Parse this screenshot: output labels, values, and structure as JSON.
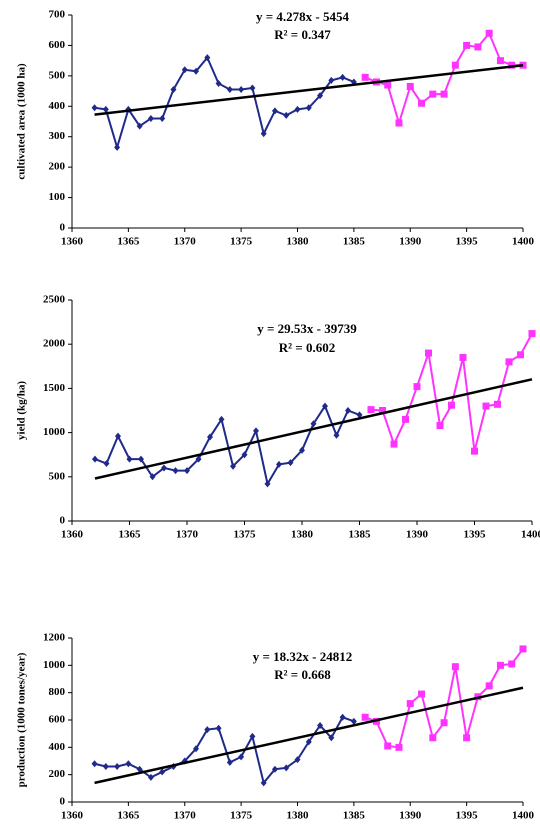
{
  "chart_data": [
    {
      "type": "line",
      "y_label": "cultivated area (1000 ha)",
      "annotations": [
        "y = 4.278x - 5454",
        "R² = 0.347"
      ],
      "x": [
        1362,
        1363,
        1364,
        1365,
        1366,
        1367,
        1368,
        1369,
        1370,
        1371,
        1372,
        1373,
        1374,
        1375,
        1376,
        1377,
        1378,
        1379,
        1380,
        1381,
        1382,
        1383,
        1384,
        1385,
        1386,
        1387,
        1388,
        1389,
        1390,
        1391,
        1392,
        1393,
        1394,
        1395,
        1396,
        1397,
        1398,
        1399,
        1400
      ],
      "xlim": [
        1360,
        1400
      ],
      "xticks": [
        1360,
        1365,
        1370,
        1375,
        1380,
        1385,
        1390,
        1395,
        1400
      ],
      "ylim": [
        0,
        700
      ],
      "yticks": [
        0,
        100,
        200,
        300,
        400,
        500,
        600,
        700
      ],
      "series": [
        {
          "color": "#1f2a8a",
          "marker": "diamond",
          "values": [
            395,
            390,
            265,
            390,
            335,
            360,
            360,
            455,
            520,
            515,
            560,
            475,
            455,
            455,
            460,
            310,
            385,
            370,
            390,
            395,
            435,
            485,
            495,
            480,
            null,
            null,
            null,
            null,
            null,
            null,
            null,
            null,
            null,
            null,
            null,
            null,
            null,
            null,
            null
          ]
        },
        {
          "color": "#ff33ff",
          "marker": "square",
          "values": [
            null,
            null,
            null,
            null,
            null,
            null,
            null,
            null,
            null,
            null,
            null,
            null,
            null,
            null,
            null,
            null,
            null,
            null,
            null,
            null,
            null,
            null,
            null,
            null,
            495,
            480,
            470,
            345,
            465,
            410,
            440,
            440,
            535,
            600,
            595,
            640,
            550,
            535,
            535
          ]
        }
      ],
      "trendline": {
        "color": "#000000",
        "x": [
          1362,
          1400
        ],
        "values": [
          372.6,
          535
        ]
      }
    },
    {
      "type": "line",
      "y_label": "yield (kg/ha)",
      "annotations": [
        "y = 29.53x - 39739",
        "R² = 0.602"
      ],
      "x": [
        1362,
        1363,
        1364,
        1365,
        1366,
        1367,
        1368,
        1369,
        1370,
        1371,
        1372,
        1373,
        1374,
        1375,
        1376,
        1377,
        1378,
        1379,
        1380,
        1381,
        1382,
        1383,
        1384,
        1385,
        1386,
        1387,
        1388,
        1389,
        1390,
        1391,
        1392,
        1393,
        1394,
        1395,
        1396,
        1397,
        1398,
        1399,
        1400
      ],
      "xlim": [
        1360,
        1400
      ],
      "xticks": [
        1360,
        1365,
        1370,
        1375,
        1380,
        1385,
        1390,
        1395,
        1400
      ],
      "ylim": [
        0,
        2500
      ],
      "yticks": [
        0,
        500,
        1000,
        1500,
        2000,
        2500
      ],
      "series": [
        {
          "color": "#1f2a8a",
          "marker": "diamond",
          "values": [
            700,
            650,
            960,
            700,
            700,
            500,
            600,
            570,
            570,
            700,
            950,
            1150,
            620,
            750,
            1020,
            420,
            640,
            660,
            800,
            1100,
            1300,
            970,
            1250,
            1200,
            null,
            null,
            null,
            null,
            null,
            null,
            null,
            null,
            null,
            null,
            null,
            null,
            null,
            null,
            null
          ]
        },
        {
          "color": "#ff33ff",
          "marker": "square",
          "values": [
            null,
            null,
            null,
            null,
            null,
            null,
            null,
            null,
            null,
            null,
            null,
            null,
            null,
            null,
            null,
            null,
            null,
            null,
            null,
            null,
            null,
            null,
            null,
            null,
            1260,
            1250,
            870,
            1150,
            1520,
            1900,
            1080,
            1310,
            1850,
            790,
            1300,
            1320,
            1800,
            1880,
            2120
          ]
        }
      ],
      "trendline": {
        "color": "#000000",
        "x": [
          1362,
          1400
        ],
        "values": [
          480.9,
          1603
        ]
      }
    },
    {
      "type": "line",
      "y_label": "production (1000 tones/year)",
      "annotations": [
        "y = 18.32x - 24812",
        "R² = 0.668"
      ],
      "x": [
        1362,
        1363,
        1364,
        1365,
        1366,
        1367,
        1368,
        1369,
        1370,
        1371,
        1372,
        1373,
        1374,
        1375,
        1376,
        1377,
        1378,
        1379,
        1380,
        1381,
        1382,
        1383,
        1384,
        1385,
        1386,
        1387,
        1388,
        1389,
        1390,
        1391,
        1392,
        1393,
        1394,
        1395,
        1396,
        1397,
        1398,
        1399,
        1400
      ],
      "xlim": [
        1360,
        1400
      ],
      "xticks": [
        1360,
        1365,
        1370,
        1375,
        1380,
        1385,
        1390,
        1395,
        1400
      ],
      "ylim": [
        0,
        1200
      ],
      "yticks": [
        0,
        200,
        400,
        600,
        800,
        1000,
        1200
      ],
      "series": [
        {
          "color": "#1f2a8a",
          "marker": "diamond",
          "values": [
            280,
            260,
            260,
            280,
            240,
            180,
            220,
            260,
            300,
            390,
            530,
            540,
            290,
            330,
            480,
            140,
            240,
            250,
            310,
            440,
            560,
            470,
            620,
            590,
            null,
            null,
            null,
            null,
            null,
            null,
            null,
            null,
            null,
            null,
            null,
            null,
            null,
            null,
            null
          ]
        },
        {
          "color": "#ff33ff",
          "marker": "square",
          "values": [
            null,
            null,
            null,
            null,
            null,
            null,
            null,
            null,
            null,
            null,
            null,
            null,
            null,
            null,
            null,
            null,
            null,
            null,
            null,
            null,
            null,
            null,
            null,
            null,
            620,
            590,
            410,
            400,
            720,
            790,
            470,
            580,
            990,
            470,
            770,
            850,
            1000,
            1010,
            1120
          ]
        }
      ],
      "trendline": {
        "color": "#000000",
        "x": [
          1362,
          1400
        ],
        "values": [
          139.8,
          836
        ]
      }
    }
  ]
}
